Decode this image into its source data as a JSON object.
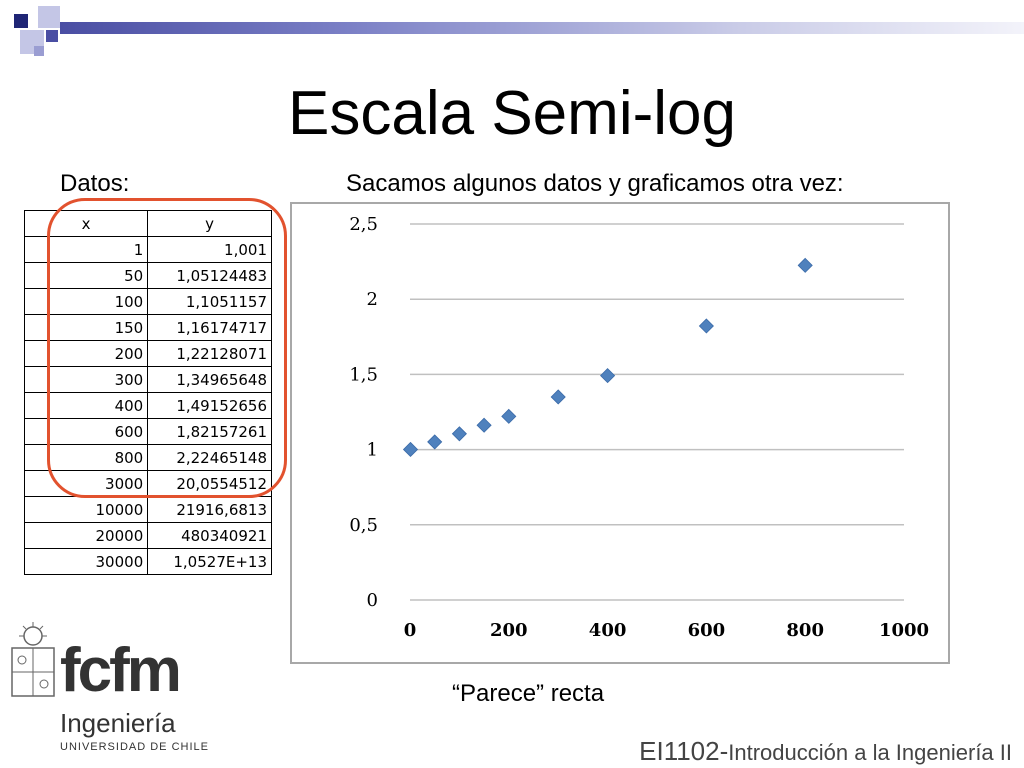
{
  "slide": {
    "title": "Escala Semi-log",
    "datos_label": "Datos:",
    "subtitle": "Sacamos algunos datos y graficamos otra vez:",
    "note": "“Parece” recta",
    "footer_code": "EI1102-",
    "footer_course": "Introducción a la Ingeniería II",
    "logo_text": "fcfm",
    "logo_sub": "Ingeniería",
    "logo_uni": "UNIVERSIDAD DE CHILE",
    "highlight_color": "#e2522e",
    "accent_color": "#4a4ea3"
  },
  "table": {
    "headers": [
      "x",
      "y"
    ],
    "rows": [
      [
        "1",
        "1,001"
      ],
      [
        "50",
        "1,05124483"
      ],
      [
        "100",
        "1,1051157"
      ],
      [
        "150",
        "1,16174717"
      ],
      [
        "200",
        "1,22128071"
      ],
      [
        "300",
        "1,34965648"
      ],
      [
        "400",
        "1,49152656"
      ],
      [
        "600",
        "1,82157261"
      ],
      [
        "800",
        "2,22465148"
      ],
      [
        "3000",
        "20,0554512"
      ],
      [
        "10000",
        "21916,6813"
      ],
      [
        "20000",
        "480340921"
      ],
      [
        "30000",
        "1,0527E+13"
      ]
    ]
  },
  "chart_data": {
    "type": "scatter",
    "x": [
      1,
      50,
      100,
      150,
      200,
      300,
      400,
      600,
      800
    ],
    "y": [
      1.001,
      1.051,
      1.105,
      1.162,
      1.221,
      1.35,
      1.492,
      1.822,
      2.225
    ],
    "xlim": [
      0,
      1000
    ],
    "ylim": [
      0,
      2.5
    ],
    "xticks": [
      0,
      200,
      400,
      600,
      800,
      1000
    ],
    "yticks": [
      0,
      0.5,
      1,
      1.5,
      2,
      2.5
    ],
    "xtick_labels": [
      "0",
      "200",
      "400",
      "600",
      "800",
      "1000"
    ],
    "ytick_labels": [
      "0",
      "0,5",
      "1",
      "1,5",
      "2",
      "2,5"
    ],
    "grid": "horizontal",
    "marker_color": "#4f81bd",
    "grid_color": "#c0c0c0"
  }
}
